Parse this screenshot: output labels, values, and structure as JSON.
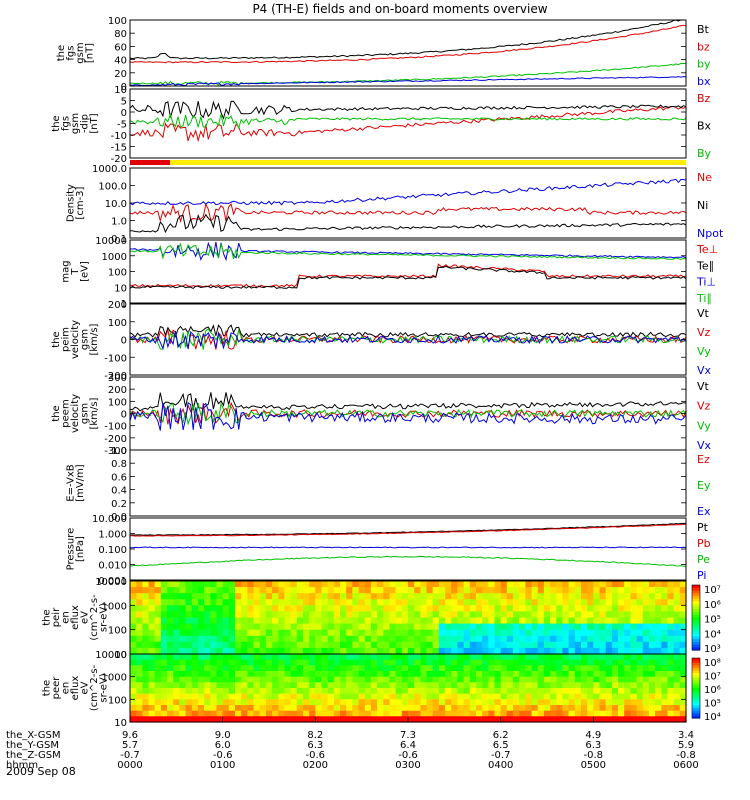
{
  "chart_data": {
    "type": "line",
    "title": "P4 (TH-E) fields and on-board moments overview",
    "date_label": "2009 Sep 08",
    "time_axis": {
      "ticks": [
        "0000",
        "0100",
        "0200",
        "0300",
        "0400",
        "0500",
        "0600"
      ],
      "rows": [
        {
          "label": "the_X-GSM",
          "values": [
            "9.6",
            "9.0",
            "8.2",
            "7.3",
            "6.2",
            "4.9",
            "3.4"
          ]
        },
        {
          "label": "the_Y-GSM",
          "values": [
            "5.7",
            "6.0",
            "6.3",
            "6.4",
            "6.5",
            "6.3",
            "5.9"
          ]
        },
        {
          "label": "the_Z-GSM",
          "values": [
            "-0.7",
            "-0.6",
            "-0.6",
            "-0.6",
            "-0.7",
            "-0.8",
            "-0.8"
          ]
        },
        {
          "label": "hhmm",
          "values": [
            "0000",
            "0100",
            "0200",
            "0300",
            "0400",
            "0500",
            "0600"
          ]
        }
      ]
    },
    "panels": [
      {
        "id": "fgs_gsm",
        "ylabel": [
          "the",
          "fgs",
          "gsm",
          "[nT]"
        ],
        "scale": "linear",
        "ylim": [
          0,
          100
        ],
        "yticks": [
          "100",
          "80",
          "60",
          "40",
          "20",
          "0"
        ],
        "series": [
          {
            "name": "Bt",
            "color": "#000000"
          },
          {
            "name": "bz",
            "color": "#e00000"
          },
          {
            "name": "by",
            "color": "#00c000"
          },
          {
            "name": "bx",
            "color": "#0000e0"
          }
        ]
      },
      {
        "id": "fgs_gsm_dip",
        "ylabel": [
          "the",
          "fgs",
          "gsm",
          "-dip",
          "[nT]"
        ],
        "scale": "linear",
        "ylim": [
          -20,
          10
        ],
        "yticks": [
          "10",
          "5",
          "0",
          "-5",
          "-10",
          "-15",
          "-20"
        ],
        "series": [
          {
            "name": "Bz",
            "color": "#e00000"
          },
          {
            "name": "Bx",
            "color": "#000000"
          },
          {
            "name": "By",
            "color": "#00c000"
          }
        ]
      },
      {
        "id": "density",
        "ylabel": [
          "Density",
          "[cm-3]"
        ],
        "scale": "log",
        "ylim": [
          0.1,
          1000
        ],
        "yticks": [
          "1000.0",
          "100.0",
          "10.0",
          "1.0",
          "0.1"
        ],
        "series": [
          {
            "name": "Ne",
            "color": "#e00000"
          },
          {
            "name": "Ni",
            "color": "#000000"
          },
          {
            "name": "Npot",
            "color": "#0000e0"
          }
        ]
      },
      {
        "id": "temperature",
        "ylabel": [
          "mag",
          "T",
          "[eV]"
        ],
        "scale": "log",
        "ylim": [
          1,
          10000
        ],
        "yticks": [
          "10000",
          "1000",
          "100",
          "10",
          "1"
        ],
        "series": [
          {
            "name": "Te⊥",
            "color": "#e00000"
          },
          {
            "name": "Te∥",
            "color": "#000000"
          },
          {
            "name": "Ti⊥",
            "color": "#0000e0"
          },
          {
            "name": "Ti∥",
            "color": "#00c000"
          }
        ]
      },
      {
        "id": "peim_velocity",
        "ylabel": [
          "the",
          "peim",
          "velocity",
          "gsm",
          "[km/s]"
        ],
        "scale": "linear",
        "ylim": [
          -200,
          200
        ],
        "yticks": [
          "200",
          "100",
          "0",
          "-100",
          "-200"
        ],
        "series": [
          {
            "name": "Vt",
            "color": "#000000"
          },
          {
            "name": "Vz",
            "color": "#e00000"
          },
          {
            "name": "Vy",
            "color": "#00c000"
          },
          {
            "name": "Vx",
            "color": "#0000e0"
          }
        ]
      },
      {
        "id": "peem_velocity",
        "ylabel": [
          "the",
          "peem",
          "velocity",
          "gsm",
          "[km/s]"
        ],
        "scale": "linear",
        "ylim": [
          -300,
          300
        ],
        "yticks": [
          "300",
          "200",
          "100",
          "0",
          "-100",
          "-200",
          "-300"
        ],
        "series": [
          {
            "name": "Vt",
            "color": "#000000"
          },
          {
            "name": "Vz",
            "color": "#e00000"
          },
          {
            "name": "Vy",
            "color": "#00c000"
          },
          {
            "name": "Vx",
            "color": "#0000e0"
          }
        ]
      },
      {
        "id": "efield",
        "ylabel": [
          "E=-VxB",
          "[mV/m]"
        ],
        "scale": "linear",
        "ylim": [
          0,
          1
        ],
        "yticks": [
          "1.0",
          "0.8",
          "0.6",
          "0.4",
          "0.2",
          "0.0"
        ],
        "series": [
          {
            "name": "Ez",
            "color": "#e00000"
          },
          {
            "name": "Ey",
            "color": "#00c000"
          },
          {
            "name": "Ex",
            "color": "#0000e0"
          }
        ]
      },
      {
        "id": "pressure",
        "ylabel": [
          "Pressure",
          "[nPa]"
        ],
        "scale": "log",
        "ylim": [
          0.001,
          10
        ],
        "yticks": [
          "10.000",
          "1.000",
          "0.100",
          "0.010",
          "0.001"
        ],
        "series": [
          {
            "name": "Pt",
            "color": "#000000"
          },
          {
            "name": "Pb",
            "color": "#e00000"
          },
          {
            "name": "Pe",
            "color": "#00c000"
          },
          {
            "name": "Pi",
            "color": "#0000e0"
          }
        ]
      },
      {
        "id": "peir_spec",
        "ylabel": [
          "the",
          "peir",
          "en",
          "eflux",
          "eV",
          "(cm^2-s-",
          "sr-eV)"
        ],
        "scale": "log",
        "ylim": [
          10,
          10000
        ],
        "yticks": [
          "10000",
          "1000",
          "100",
          "10"
        ],
        "colorbar_ticks": [
          "10⁷",
          "10⁶",
          "10⁵",
          "10⁴",
          "10³"
        ]
      },
      {
        "id": "peer_spec",
        "ylabel": [
          "the",
          "peer",
          "en",
          "eflux",
          "eV",
          "(cm^2-s-",
          "sr-eV)"
        ],
        "scale": "log",
        "ylim": [
          10,
          10000
        ],
        "yticks": [
          "10000",
          "1000",
          "100",
          "10"
        ],
        "colorbar_ticks": [
          "10⁸",
          "10⁷",
          "10⁶",
          "10⁵",
          "10⁴"
        ]
      }
    ]
  }
}
